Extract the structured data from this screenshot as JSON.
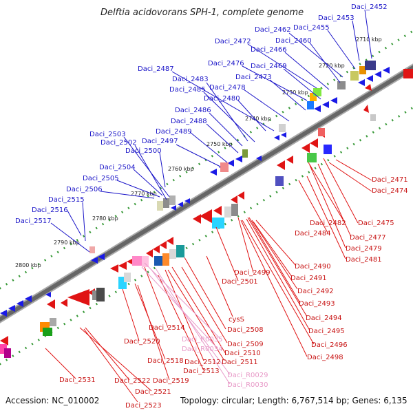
{
  "title": "Delftia acidovorans SPH-1, complete genome",
  "footer": {
    "accession": "Accession: NC_010002",
    "stats": "Topology: circular; Length: 6,767,514 bp; Genes: 6,135"
  },
  "ticks": [
    "2710 kbp",
    "2720 kbp",
    "2730 kbp",
    "2740 kbp",
    "2750 kbp",
    "2760 kbp",
    "2770 kbp",
    "2780 kbp",
    "2790 kbp",
    "2800 kbp"
  ],
  "top_labels": [
    "Daci_2452",
    "Daci_2453",
    "Daci_2455",
    "Daci_2462",
    "Daci_2460",
    "Daci_2472",
    "Daci_2466",
    "Daci_2476",
    "Daci_2469",
    "Daci_2487",
    "Daci_2473",
    "Daci_2483",
    "Daci_2478",
    "Daci_2485",
    "Daci_2480",
    "Daci_2486",
    "Daci_2488",
    "Daci_2489",
    "Daci_2503",
    "Daci_2497",
    "Daci_2502",
    "Daci_2500",
    "Daci_2504",
    "Daci_2505",
    "Daci_2506",
    "Daci_2515",
    "Daci_2516",
    "Daci_2517"
  ],
  "bottom_labels": [
    "Daci_2471",
    "Daci_2474",
    "Daci_2475",
    "Daci_2482",
    "Daci_2477",
    "Daci_2484",
    "Daci_2479",
    "Daci_2481",
    "Daci_2490",
    "Daci_2499",
    "Daci_2491",
    "Daci_2501",
    "Daci_2492",
    "Daci_2493",
    "cysS",
    "Daci_2494",
    "Daci_2508",
    "Daci_2495",
    "Daci_2514",
    "Daci_2496",
    "Daci_2509",
    "Daci_2520",
    "Daci_2510",
    "Daci_2498",
    "Daci_2518",
    "Daci_2512",
    "Daci_2511",
    "Daci_2513",
    "Daci_2519",
    "Daci_2522",
    "Daci_2531",
    "Daci_2521",
    "Daci_2523"
  ],
  "rna_labels": [
    "Daci_R0035",
    "Daci_R0034",
    "Daci_R0029",
    "Daci_R0030"
  ]
}
